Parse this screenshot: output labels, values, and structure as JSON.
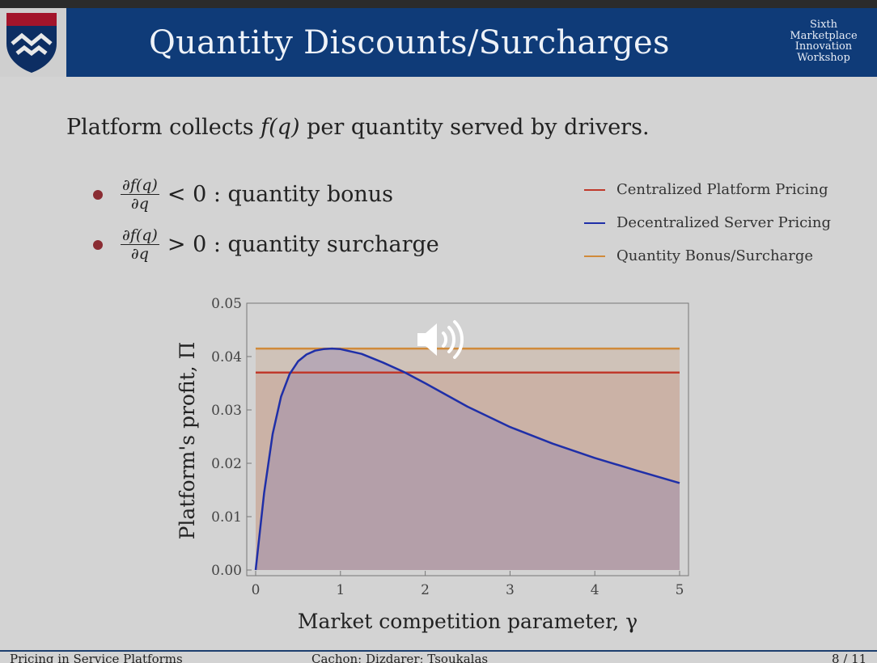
{
  "slide": {
    "title": "Quantity Discounts/Surcharges",
    "workshop_lines": [
      "Sixth",
      "Marketplace",
      "Innovation",
      "Workshop"
    ],
    "intro_prefix": "Platform collects ",
    "intro_math": "f(q)",
    "intro_suffix": " per quantity served by drivers.",
    "bullets": [
      {
        "frac_num": "∂f(q)",
        "frac_den": "∂q",
        "text": " < 0 : quantity bonus"
      },
      {
        "frac_num": "∂f(q)",
        "frac_den": "∂q",
        "text": " > 0 : quantity surcharge"
      }
    ]
  },
  "legend": [
    {
      "label": "Centralized Platform Pricing",
      "color": "#c0392b"
    },
    {
      "label": "Decentralized Server Pricing",
      "color": "#1f2fa8"
    },
    {
      "label": "Quantity Bonus/Surcharge",
      "color": "#d08a3a"
    }
  ],
  "footer": {
    "left": "Pricing in Service Platforms",
    "center": "Cachon; Dizdarer; Tsoukalas",
    "right": "8 / 11"
  },
  "icons": {
    "logo": "university-shield-icon",
    "audio": "speaker-volume-icon"
  },
  "chart_data": {
    "type": "line",
    "xlabel": "Market competition parameter, γ",
    "ylabel": "Platform's profit, Π",
    "xlim": [
      0,
      5
    ],
    "ylim": [
      0,
      0.05
    ],
    "x_ticks": [
      "0",
      "1",
      "2",
      "3",
      "4",
      "5"
    ],
    "y_ticks": [
      "0.00",
      "0.01",
      "0.02",
      "0.03",
      "0.04",
      "0.05"
    ],
    "grid": false,
    "series": [
      {
        "name": "Centralized Platform Pricing",
        "color": "#c0392b",
        "x": [
          0,
          5
        ],
        "y": [
          0.037,
          0.037
        ]
      },
      {
        "name": "Quantity Bonus/Surcharge",
        "color": "#d08a3a",
        "x": [
          0,
          5
        ],
        "y": [
          0.0415,
          0.0415
        ]
      },
      {
        "name": "Decentralized Server Pricing",
        "color": "#1f2fa8",
        "x": [
          0,
          0.1,
          0.2,
          0.3,
          0.4,
          0.5,
          0.6,
          0.7,
          0.8,
          0.9,
          1.0,
          1.25,
          1.5,
          1.75,
          2.0,
          2.5,
          3.0,
          3.5,
          4.0,
          4.5,
          5.0
        ],
        "y": [
          0,
          0.0145,
          0.0255,
          0.0325,
          0.0367,
          0.0391,
          0.0404,
          0.0411,
          0.0414,
          0.0415,
          0.0414,
          0.0405,
          0.0389,
          0.0371,
          0.035,
          0.0306,
          0.0268,
          0.0237,
          0.021,
          0.0186,
          0.0163
        ]
      }
    ]
  }
}
